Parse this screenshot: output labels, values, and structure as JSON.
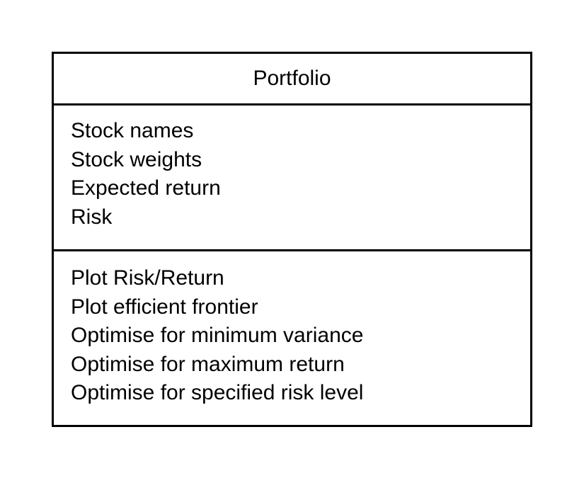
{
  "diagram": {
    "class_name": "Portfolio",
    "attributes": [
      "Stock names",
      "Stock weights",
      "Expected return",
      "Risk"
    ],
    "methods": [
      "Plot Risk/Return",
      "Plot efficient frontier",
      "Optimise for minimum variance",
      "Optimise for maximum return",
      "Optimise for specified risk level"
    ]
  }
}
